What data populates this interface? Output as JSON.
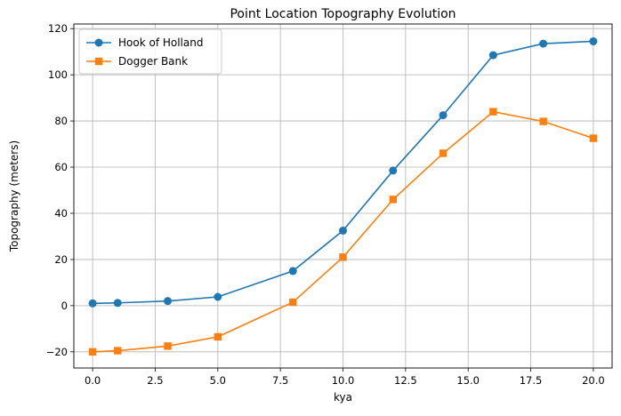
{
  "chart_data": {
    "type": "line",
    "title": "Point Location Topography Evolution",
    "xlabel": "kya",
    "ylabel": "Topography (meters)",
    "xlim": [
      -0.75,
      20.75
    ],
    "ylim": [
      -27,
      122
    ],
    "x": [
      0,
      1,
      3,
      5,
      8,
      10,
      12,
      14,
      16,
      18,
      20
    ],
    "xticks": [
      0.0,
      2.5,
      5.0,
      7.5,
      10.0,
      12.5,
      15.0,
      17.5,
      20.0
    ],
    "xtick_labels": [
      "0.0",
      "2.5",
      "5.0",
      "7.5",
      "10.0",
      "12.5",
      "15.0",
      "17.5",
      "20.0"
    ],
    "yticks": [
      -20,
      0,
      20,
      40,
      60,
      80,
      100,
      120
    ],
    "ytick_labels": [
      "−20",
      "0",
      "20",
      "40",
      "60",
      "80",
      "100",
      "120"
    ],
    "grid": true,
    "legend_position": "top-left",
    "series": [
      {
        "name": "Hook of Holland",
        "color": "#1f77b4",
        "marker": "circle",
        "values": [
          1,
          1.2,
          2,
          3.8,
          15,
          32.5,
          58.5,
          82.5,
          108.5,
          113.5,
          114.5
        ]
      },
      {
        "name": "Dogger Bank",
        "color": "#ff7f0e",
        "marker": "square",
        "values": [
          -20,
          -19.5,
          -17.5,
          -13.5,
          1.5,
          21,
          46,
          66,
          84,
          79.8,
          72.5
        ]
      }
    ]
  }
}
